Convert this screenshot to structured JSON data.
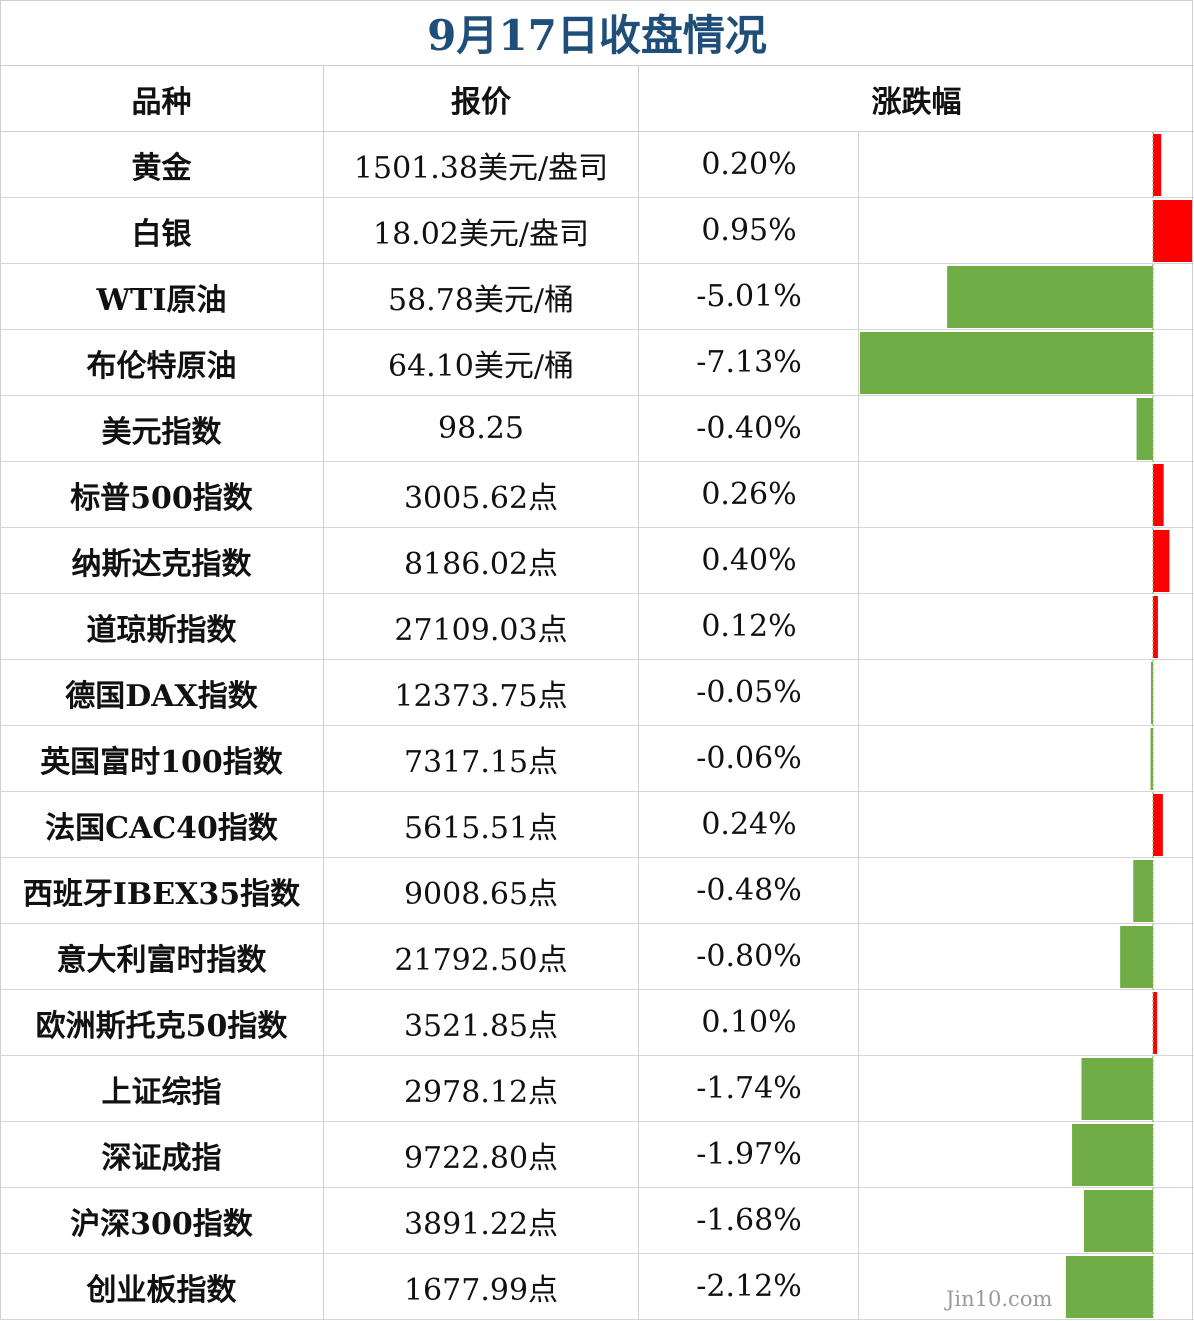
{
  "title": "9月17日收盘情况",
  "headers": {
    "name": "品种",
    "quote": "报价",
    "change": "涨跌幅"
  },
  "colors": {
    "up": "#ff0000",
    "down": "#70ad47",
    "title": "#1f4e79"
  },
  "watermark": "Jin10.com",
  "chart_data": {
    "type": "bar",
    "orientation": "horizontal",
    "categories": [
      "黄金",
      "白银",
      "WTI原油",
      "布伦特原油",
      "美元指数",
      "标普500指数",
      "纳斯达克指数",
      "道琼斯指数",
      "德国DAX指数",
      "英国富时100指数",
      "法国CAC40指数",
      "西班牙IBEX35指数",
      "意大利富时指数",
      "欧洲斯托克50指数",
      "上证综指",
      "深证成指",
      "沪深300指数",
      "创业板指数"
    ],
    "values": [
      0.2,
      0.95,
      -5.01,
      -7.13,
      -0.4,
      0.26,
      0.4,
      0.12,
      -0.05,
      -0.06,
      0.24,
      -0.48,
      -0.8,
      0.1,
      -1.74,
      -1.97,
      -1.68,
      -2.12
    ],
    "unit": "%"
  },
  "rows": [
    {
      "name": "黄金",
      "quote": "1501.38美元/盎司",
      "change": "0.20%"
    },
    {
      "name": "白银",
      "quote": "18.02美元/盎司",
      "change": "0.95%"
    },
    {
      "name": "WTI原油",
      "quote": "58.78美元/桶",
      "change": "-5.01%"
    },
    {
      "name": "布伦特原油",
      "quote": "64.10美元/桶",
      "change": "-7.13%"
    },
    {
      "name": "美元指数",
      "quote": "98.25",
      "change": "-0.40%"
    },
    {
      "name": "标普500指数",
      "quote": "3005.62点",
      "change": "0.26%"
    },
    {
      "name": "纳斯达克指数",
      "quote": "8186.02点",
      "change": "0.40%"
    },
    {
      "name": "道琼斯指数",
      "quote": "27109.03点",
      "change": "0.12%"
    },
    {
      "name": "德国DAX指数",
      "quote": "12373.75点",
      "change": "-0.05%"
    },
    {
      "name": "英国富时100指数",
      "quote": "7317.15点",
      "change": "-0.06%"
    },
    {
      "name": "法国CAC40指数",
      "quote": "5615.51点",
      "change": "0.24%"
    },
    {
      "name": "西班牙IBEX35指数",
      "quote": "9008.65点",
      "change": "-0.48%"
    },
    {
      "name": "意大利富时指数",
      "quote": "21792.50点",
      "change": "-0.80%"
    },
    {
      "name": "欧洲斯托克50指数",
      "quote": "3521.85点",
      "change": "0.10%"
    },
    {
      "name": "上证综指",
      "quote": "2978.12点",
      "change": "-1.74%"
    },
    {
      "name": "深证成指",
      "quote": "9722.80点",
      "change": "-1.97%"
    },
    {
      "name": "沪深300指数",
      "quote": "3891.22点",
      "change": "-1.68%"
    },
    {
      "name": "创业板指数",
      "quote": "1677.99点",
      "change": "-2.12%"
    }
  ]
}
